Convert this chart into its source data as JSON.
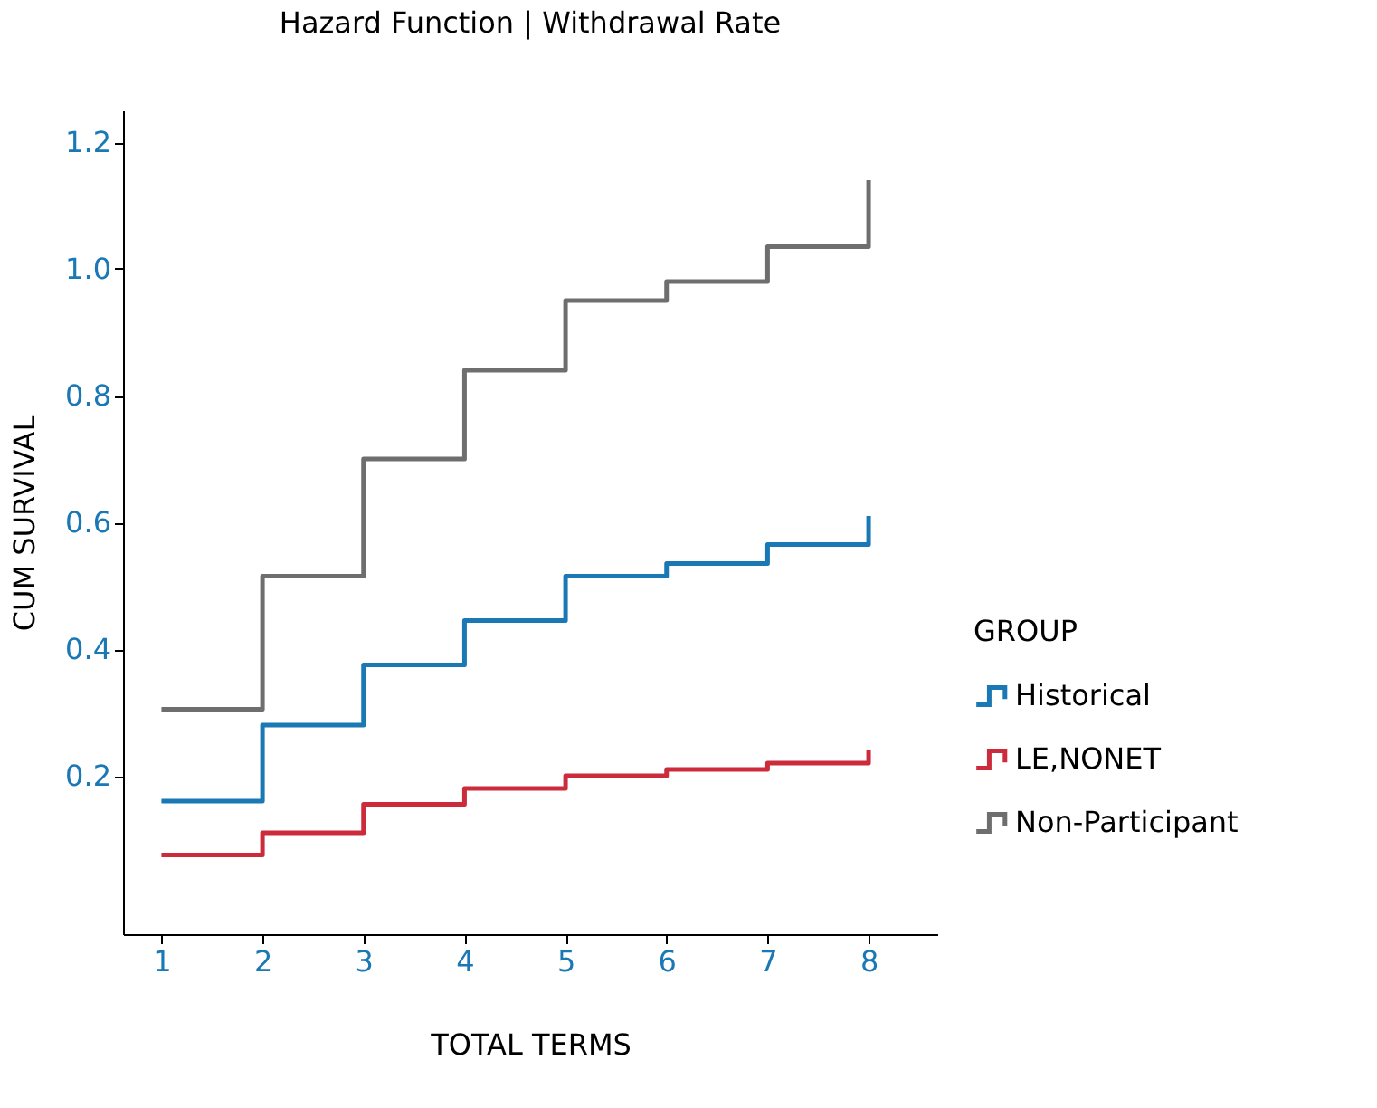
{
  "chart_data": {
    "type": "step",
    "title": "Hazard Function | Withdrawal Rate",
    "xlabel": "TOTAL TERMS",
    "ylabel": "CUM SURVIVAL",
    "legend_title": "GROUP",
    "x": [
      1,
      2,
      3,
      4,
      5,
      6,
      7,
      8
    ],
    "series": [
      {
        "name": "Historical",
        "color": "#1a78b4",
        "values": [
          0.16,
          0.28,
          0.375,
          0.445,
          0.515,
          0.535,
          0.565,
          0.61
        ]
      },
      {
        "name": "LE,NONET",
        "color": "#cc2b3c",
        "values": [
          0.075,
          0.11,
          0.155,
          0.18,
          0.2,
          0.21,
          0.22,
          0.24
        ]
      },
      {
        "name": "Non-Participant",
        "color": "#6e6e6e",
        "values": [
          0.305,
          0.515,
          0.7,
          0.84,
          0.95,
          0.98,
          1.035,
          1.14
        ]
      }
    ],
    "xlim": [
      0.62,
      8.68
    ],
    "xticks": [
      1,
      2,
      3,
      4,
      5,
      6,
      7,
      8
    ],
    "ylim": [
      -0.05,
      1.25
    ],
    "yticks": [
      0.2,
      0.4,
      0.6,
      0.8,
      {
        "value": 1,
        "label": "1.0"
      },
      1.2
    ],
    "grid": false,
    "legend": "right",
    "marker": "none",
    "line_style": "solid"
  }
}
